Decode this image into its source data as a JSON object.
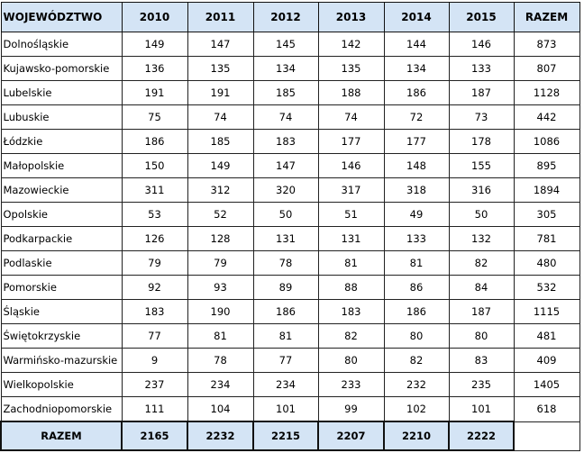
{
  "header": {
    "col0": "WOJEWÓDZTWO",
    "years": [
      "2010",
      "2011",
      "2012",
      "2013",
      "2014",
      "2015"
    ],
    "total": "RAZEM"
  },
  "rows": [
    {
      "name": "Dolnośląskie",
      "values": [
        "149",
        "147",
        "145",
        "142",
        "144",
        "146"
      ],
      "total": "873"
    },
    {
      "name": "Kujawsko-pomorskie",
      "values": [
        "136",
        "135",
        "134",
        "135",
        "134",
        "133"
      ],
      "total": "807"
    },
    {
      "name": "Lubelskie",
      "values": [
        "191",
        "191",
        "185",
        "188",
        "186",
        "187"
      ],
      "total": "1128"
    },
    {
      "name": "Lubuskie",
      "values": [
        "75",
        "74",
        "74",
        "74",
        "72",
        "73"
      ],
      "total": "442"
    },
    {
      "name": "Łódzkie",
      "values": [
        "186",
        "185",
        "183",
        "177",
        "177",
        "178"
      ],
      "total": "1086"
    },
    {
      "name": "Małopolskie",
      "values": [
        "150",
        "149",
        "147",
        "146",
        "148",
        "155"
      ],
      "total": "895"
    },
    {
      "name": "Mazowieckie",
      "values": [
        "311",
        "312",
        "320",
        "317",
        "318",
        "316"
      ],
      "total": "1894"
    },
    {
      "name": "Opolskie",
      "values": [
        "53",
        "52",
        "50",
        "51",
        "49",
        "50"
      ],
      "total": "305"
    },
    {
      "name": "Podkarpackie",
      "values": [
        "126",
        "128",
        "131",
        "131",
        "133",
        "132"
      ],
      "total": "781"
    },
    {
      "name": "Podlaskie",
      "values": [
        "79",
        "79",
        "78",
        "81",
        "81",
        "82"
      ],
      "total": "480"
    },
    {
      "name": "Pomorskie",
      "values": [
        "92",
        "93",
        "89",
        "88",
        "86",
        "84"
      ],
      "total": "532"
    },
    {
      "name": "Śląskie",
      "values": [
        "183",
        "190",
        "186",
        "183",
        "186",
        "187"
      ],
      "total": "1115"
    },
    {
      "name": "Świętokrzyskie",
      "values": [
        "77",
        "81",
        "81",
        "82",
        "80",
        "80"
      ],
      "total": "481"
    },
    {
      "name": "Warmińsko-mazurskie",
      "values": [
        "9",
        "78",
        "77",
        "80",
        "82",
        "83"
      ],
      "total": "409"
    },
    {
      "name": "Wielkopolskie",
      "values": [
        "237",
        "234",
        "234",
        "233",
        "232",
        "235"
      ],
      "total": "1405"
    },
    {
      "name": "Zachodniopomorskie",
      "values": [
        "111",
        "104",
        "101",
        "99",
        "102",
        "101"
      ],
      "total": "618"
    }
  ],
  "footer": {
    "label": "RAZEM",
    "values": [
      "2165",
      "2232",
      "2215",
      "2207",
      "2210",
      "2222"
    ]
  }
}
